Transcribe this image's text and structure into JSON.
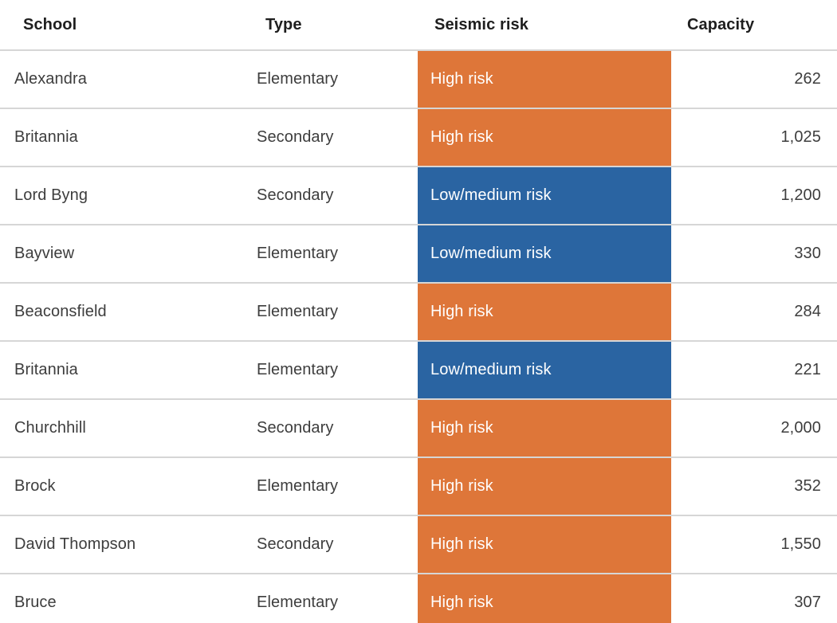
{
  "chart_data": {
    "type": "table",
    "columns": [
      "School",
      "Type",
      "Seismic risk",
      "Capacity"
    ],
    "rows": [
      {
        "school": "Alexandra",
        "type": "Elementary",
        "seismic_risk": "High risk",
        "risk_level": "high",
        "capacity": 262,
        "capacity_label": "262"
      },
      {
        "school": "Britannia",
        "type": "Secondary",
        "seismic_risk": "High risk",
        "risk_level": "high",
        "capacity": 1025,
        "capacity_label": "1,025"
      },
      {
        "school": "Lord Byng",
        "type": "Secondary",
        "seismic_risk": "Low/medium risk",
        "risk_level": "low_medium",
        "capacity": 1200,
        "capacity_label": "1,200"
      },
      {
        "school": "Bayview",
        "type": "Elementary",
        "seismic_risk": "Low/medium risk",
        "risk_level": "low_medium",
        "capacity": 330,
        "capacity_label": "330"
      },
      {
        "school": "Beaconsfield",
        "type": "Elementary",
        "seismic_risk": "High risk",
        "risk_level": "high",
        "capacity": 284,
        "capacity_label": "284"
      },
      {
        "school": "Britannia",
        "type": "Elementary",
        "seismic_risk": "Low/medium risk",
        "risk_level": "low_medium",
        "capacity": 221,
        "capacity_label": "221"
      },
      {
        "school": "Churchhill",
        "type": "Secondary",
        "seismic_risk": "High risk",
        "risk_level": "high",
        "capacity": 2000,
        "capacity_label": "2,000"
      },
      {
        "school": "Brock",
        "type": "Elementary",
        "seismic_risk": "High risk",
        "risk_level": "high",
        "capacity": 352,
        "capacity_label": "352"
      },
      {
        "school": "David Thompson",
        "type": "Secondary",
        "seismic_risk": "High risk",
        "risk_level": "high",
        "capacity": 1550,
        "capacity_label": "1,550"
      },
      {
        "school": "Bruce",
        "type": "Elementary",
        "seismic_risk": "High risk",
        "risk_level": "high",
        "capacity": 307,
        "capacity_label": "307"
      }
    ],
    "colors": {
      "high_risk_bg": "#DE7639",
      "low_medium_risk_bg": "#2A64A2",
      "risk_text": "#FFFFFF",
      "divider": "#D6D6D6",
      "header_text": "#1E1E1E",
      "body_text": "#3D3D3D"
    },
    "legend_position": "none",
    "grid": "horizontal-dividers"
  }
}
